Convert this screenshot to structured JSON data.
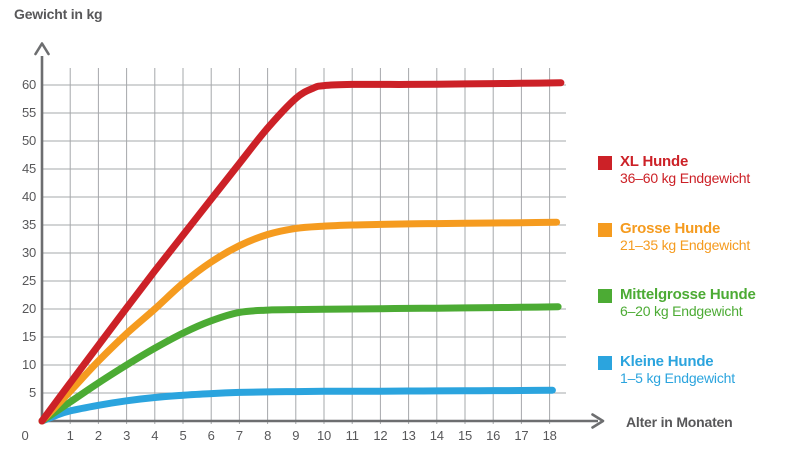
{
  "colors": {
    "axis": "#6d6e70",
    "grid": "#a6a8ab",
    "text": "#58585a"
  },
  "chart_data": {
    "type": "line",
    "title": "",
    "ylabel": "Gewicht in kg",
    "xlabel": "Alter in Monaten",
    "xlim": [
      0,
      18.6
    ],
    "ylim": [
      0,
      62
    ],
    "grid": true,
    "legend_position": "right",
    "origin_tick": "0",
    "x_ticks": [
      1,
      2,
      3,
      4,
      5,
      6,
      7,
      8,
      9,
      10,
      11,
      12,
      13,
      14,
      15,
      16,
      17,
      18
    ],
    "y_ticks": [
      5,
      10,
      15,
      20,
      25,
      30,
      35,
      40,
      45,
      50,
      55,
      60
    ],
    "series": [
      {
        "name": "xl-hunde",
        "color": "#cc2127",
        "legend_title": "XL Hunde",
        "legend_subtitle": "36–60 kg Endgewicht",
        "points": [
          [
            0,
            0
          ],
          [
            1,
            6.8
          ],
          [
            2,
            13.5
          ],
          [
            3,
            20.2
          ],
          [
            4,
            26.8
          ],
          [
            5,
            33.2
          ],
          [
            6,
            39.6
          ],
          [
            7,
            46
          ],
          [
            8,
            52.3
          ],
          [
            9,
            57.6
          ],
          [
            9.6,
            59.4
          ],
          [
            10,
            59.9
          ],
          [
            11,
            60.1
          ],
          [
            12,
            60.1
          ],
          [
            13,
            60.1
          ],
          [
            14,
            60.15
          ],
          [
            15,
            60.2
          ],
          [
            16,
            60.25
          ],
          [
            17,
            60.3
          ],
          [
            18.4,
            60.4
          ]
        ]
      },
      {
        "name": "grosse-hunde",
        "color": "#f59b1f",
        "legend_title": "Grosse Hunde",
        "legend_subtitle": "21–35 kg Endgewicht",
        "points": [
          [
            0,
            0
          ],
          [
            1,
            5.3
          ],
          [
            2,
            10.7
          ],
          [
            3,
            15.6
          ],
          [
            4,
            20
          ],
          [
            5,
            24.6
          ],
          [
            6,
            28.4
          ],
          [
            7,
            31.3
          ],
          [
            8,
            33.3
          ],
          [
            9,
            34.4
          ],
          [
            10,
            34.8
          ],
          [
            11,
            35
          ],
          [
            12,
            35.1
          ],
          [
            13,
            35.2
          ],
          [
            14,
            35.25
          ],
          [
            15,
            35.3
          ],
          [
            16,
            35.35
          ],
          [
            17,
            35.4
          ],
          [
            18.25,
            35.5
          ]
        ]
      },
      {
        "name": "mittelgrosse-hunde",
        "color": "#4cab34",
        "legend_title": "Mittelgrosse Hunde",
        "legend_subtitle": "6–20 kg Endgewicht",
        "points": [
          [
            0,
            0
          ],
          [
            1,
            3.4
          ],
          [
            2,
            6.8
          ],
          [
            3,
            10
          ],
          [
            4,
            13
          ],
          [
            5,
            15.7
          ],
          [
            6,
            17.9
          ],
          [
            7,
            19.4
          ],
          [
            8,
            19.8
          ],
          [
            9,
            19.9
          ],
          [
            10,
            19.95
          ],
          [
            11,
            20
          ],
          [
            12,
            20.05
          ],
          [
            13,
            20.1
          ],
          [
            14,
            20.15
          ],
          [
            15,
            20.2
          ],
          [
            16,
            20.25
          ],
          [
            17,
            20.3
          ],
          [
            18.3,
            20.4
          ]
        ]
      },
      {
        "name": "kleine-hunde",
        "color": "#2ba4de",
        "legend_title": "Kleine Hunde",
        "legend_subtitle": "1–5 kg Endgewicht",
        "points": [
          [
            0,
            0
          ],
          [
            0.5,
            1
          ],
          [
            1,
            1.8
          ],
          [
            2,
            2.8
          ],
          [
            3,
            3.6
          ],
          [
            4,
            4.2
          ],
          [
            5,
            4.6
          ],
          [
            6,
            4.9
          ],
          [
            7,
            5.1
          ],
          [
            8,
            5.2
          ],
          [
            9,
            5.25
          ],
          [
            10,
            5.3
          ],
          [
            11,
            5.3
          ],
          [
            12,
            5.32
          ],
          [
            13,
            5.35
          ],
          [
            14,
            5.38
          ],
          [
            15,
            5.4
          ],
          [
            16,
            5.42
          ],
          [
            17,
            5.45
          ],
          [
            18.1,
            5.5
          ]
        ]
      }
    ]
  }
}
